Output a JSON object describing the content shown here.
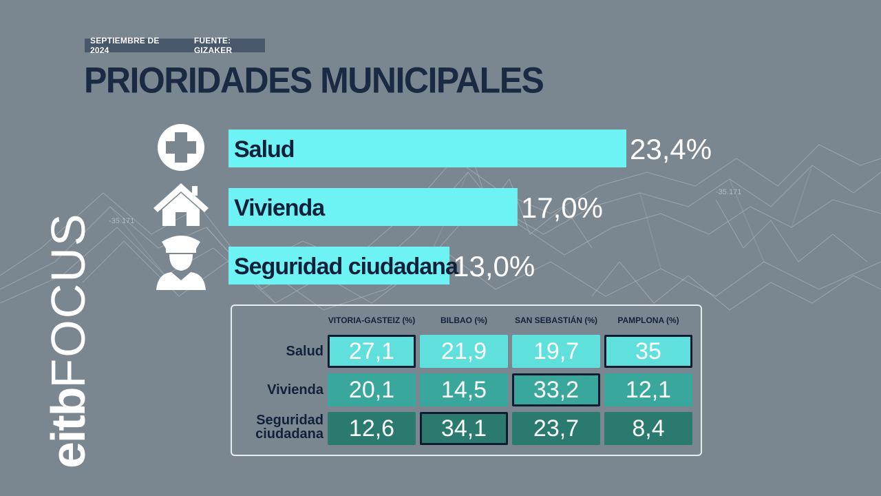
{
  "header": {
    "date": "SEPTIEMBRE DE 2024",
    "source": "FUENTE: GIZAKER",
    "title": "PRIORIDADES MUNICIPALES"
  },
  "logo": {
    "brand": "eitb",
    "product": "FOCUS"
  },
  "background_labels": [
    "-35.171",
    "-35.171"
  ],
  "colors": {
    "background": "#7b8790",
    "bar": "#6ef3f4",
    "title": "#1b2a43",
    "text_dark": "#12213a",
    "cell_salud": "#5fe0dc",
    "cell_vivienda": "#3aa79d",
    "cell_seguridad": "#2a7a6f",
    "highlight_border": "#0f1c30"
  },
  "icons": [
    "medical-cross-icon",
    "house-icon",
    "police-officer-icon"
  ],
  "chart_data": [
    {
      "type": "bar",
      "orientation": "horizontal",
      "categories": [
        "Salud",
        "Vivienda",
        "Seguridad ciudadana"
      ],
      "values": [
        23.4,
        17.0,
        13.0
      ],
      "value_labels": [
        "23,4%",
        "17,0%",
        "13,0%"
      ],
      "title": "PRIORIDADES MUNICIPALES",
      "xlim": [
        0,
        23.4
      ]
    },
    {
      "type": "table",
      "columns": [
        "VITORIA-GASTEIZ (%)",
        "BILBAO (%)",
        "SAN SEBASTIÁN (%)",
        "PAMPLONA (%)"
      ],
      "rows": [
        {
          "label": "Salud",
          "values": [
            "27,1",
            "21,9",
            "19,7",
            "35"
          ],
          "highlighted": [
            true,
            false,
            false,
            true
          ]
        },
        {
          "label": "Vivienda",
          "values": [
            "20,1",
            "14,5",
            "33,2",
            "12,1"
          ],
          "highlighted": [
            false,
            false,
            true,
            false
          ]
        },
        {
          "label": "Seguridad ciudadana",
          "label_lines": [
            "Seguridad",
            "ciudadana"
          ],
          "values": [
            "12,6",
            "34,1",
            "23,7",
            "8,4"
          ],
          "highlighted": [
            false,
            true,
            false,
            false
          ]
        }
      ]
    }
  ]
}
